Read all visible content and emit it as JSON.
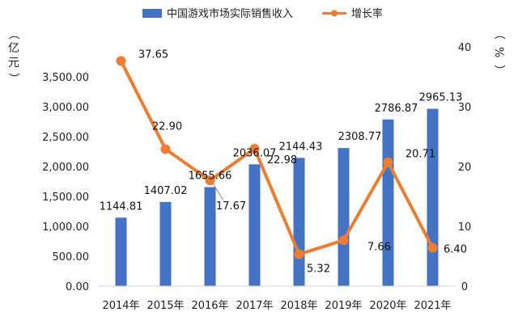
{
  "chart_data": {
    "type": "bar",
    "categories": [
      "2014年",
      "2015年",
      "2016年",
      "2017年",
      "2018年",
      "2019年",
      "2020年",
      "2021年"
    ],
    "series": [
      {
        "name": "中国游戏市场实际销售收入",
        "type": "bar",
        "axis": "left",
        "color": "#4472C4",
        "values": [
          1144.81,
          1407.02,
          1655.66,
          2036.07,
          2144.43,
          2308.77,
          2786.87,
          2965.13
        ],
        "labels": [
          "1144.81",
          "1407.02",
          "1655.66",
          "2036.07",
          "2144.43",
          "2308.77",
          "2786.87",
          "2965.13"
        ]
      },
      {
        "name": "增长率",
        "type": "line",
        "axis": "right",
        "color": "#ED7D31",
        "values": [
          37.65,
          22.9,
          17.67,
          22.98,
          5.32,
          7.66,
          20.71,
          6.4
        ],
        "labels": [
          "37.65",
          "22.90",
          "17.67",
          "22.98",
          "5.32",
          "7.66",
          "20.71",
          "6.40"
        ]
      }
    ],
    "y_left": {
      "unit_top": "（",
      "unit_chars": [
        "亿",
        "元"
      ],
      "unit_bottom": "）",
      "range": [
        0,
        4000
      ],
      "ticks": [
        "0.00",
        "500.00",
        "1,000.00",
        "1,500.00",
        "2,000.00",
        "2,500.00",
        "3,000.00",
        "3,500.00"
      ],
      "tick_values": [
        0,
        500,
        1000,
        1500,
        2000,
        2500,
        3000,
        3500
      ]
    },
    "y_right": {
      "unit_top": "（",
      "unit_char": "%",
      "unit_bottom": "）",
      "range": [
        0,
        40
      ],
      "ticks": [
        "0",
        "10",
        "20",
        "30",
        "40"
      ],
      "tick_values": [
        0,
        10,
        20,
        30,
        40
      ]
    },
    "legend_position": "top-center",
    "grid": false
  }
}
